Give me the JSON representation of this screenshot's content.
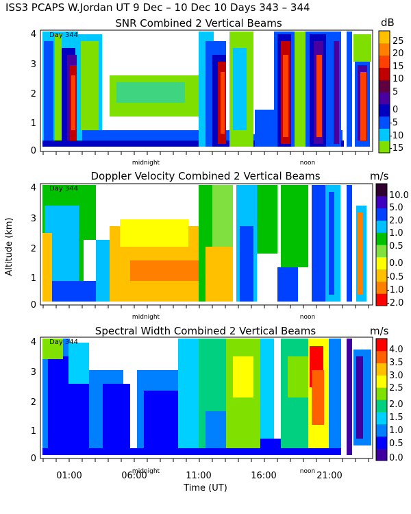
{
  "header": {
    "title": "ISS3 PCAPS W.Jordan UT    9 Dec – 10 Dec 10 Days 343 – 344"
  },
  "chart_data": [
    {
      "type": "heatmap",
      "title": "SNR Combined 2 Vertical Beams",
      "ylabel": "",
      "xlabel": "",
      "ylim": [
        0,
        4
      ],
      "yticks": [
        "0",
        "1",
        "2",
        "3",
        "4"
      ],
      "day_label": "Day 344",
      "midnight_label": "midnight",
      "noon_label": "noon",
      "colorbar": {
        "unit": "dB",
        "labels": [
          "25",
          "20",
          "15",
          "10",
          "5",
          "0",
          "-5",
          "-10",
          "-15"
        ],
        "colors": [
          "#7fe000",
          "#00c8ff",
          "#0050ff",
          "#0000c0",
          "#4800a0",
          "#600040",
          "#c00000",
          "#ff4000",
          "#ff8000",
          "#ffc000"
        ]
      }
    },
    {
      "type": "heatmap",
      "title": "Doppler Velocity Combined 2 Vertical Beams",
      "ylabel": "Altitude (km)",
      "xlabel": "",
      "ylim": [
        0,
        4
      ],
      "yticks": [
        "0",
        "1",
        "2",
        "3",
        "4"
      ],
      "day_label": "Day 344",
      "midnight_label": "midnight",
      "noon_label": "noon",
      "colorbar": {
        "unit": "m/s",
        "labels": [
          "10.0",
          "5.0",
          "2.0",
          "1.0",
          "0.5",
          "0.0",
          "-0.5",
          "-1.0",
          "-2.0"
        ],
        "colors": [
          "#ff0000",
          "#ff8000",
          "#ffc000",
          "#ffff00",
          "#80e040",
          "#00c000",
          "#00c0ff",
          "#0040ff",
          "#4000c0",
          "#300030"
        ]
      }
    },
    {
      "type": "heatmap",
      "title": "Spectral Width Combined 2 Vertical Beams",
      "ylabel": "",
      "xlabel": "Time (UT)",
      "ylim": [
        0,
        4
      ],
      "yticks": [
        "0",
        "1",
        "2",
        "3",
        "4"
      ],
      "xticks": [
        "01:00",
        "06:00",
        "11:00",
        "16:00",
        "21:00"
      ],
      "day_label": "Day 344",
      "midnight_label": "midnight",
      "noon_label": "noon",
      "colorbar": {
        "unit": "m/s",
        "labels": [
          "4.0",
          "3.5",
          "3.0",
          "2.5",
          "2.0",
          "1.5",
          "1.0",
          "0.5",
          "0.0"
        ],
        "colors": [
          "#4000a0",
          "#0000ff",
          "#0080ff",
          "#00d0ff",
          "#00d080",
          "#80e000",
          "#ffff00",
          "#ffc000",
          "#ff6000",
          "#ff0000"
        ]
      }
    }
  ]
}
